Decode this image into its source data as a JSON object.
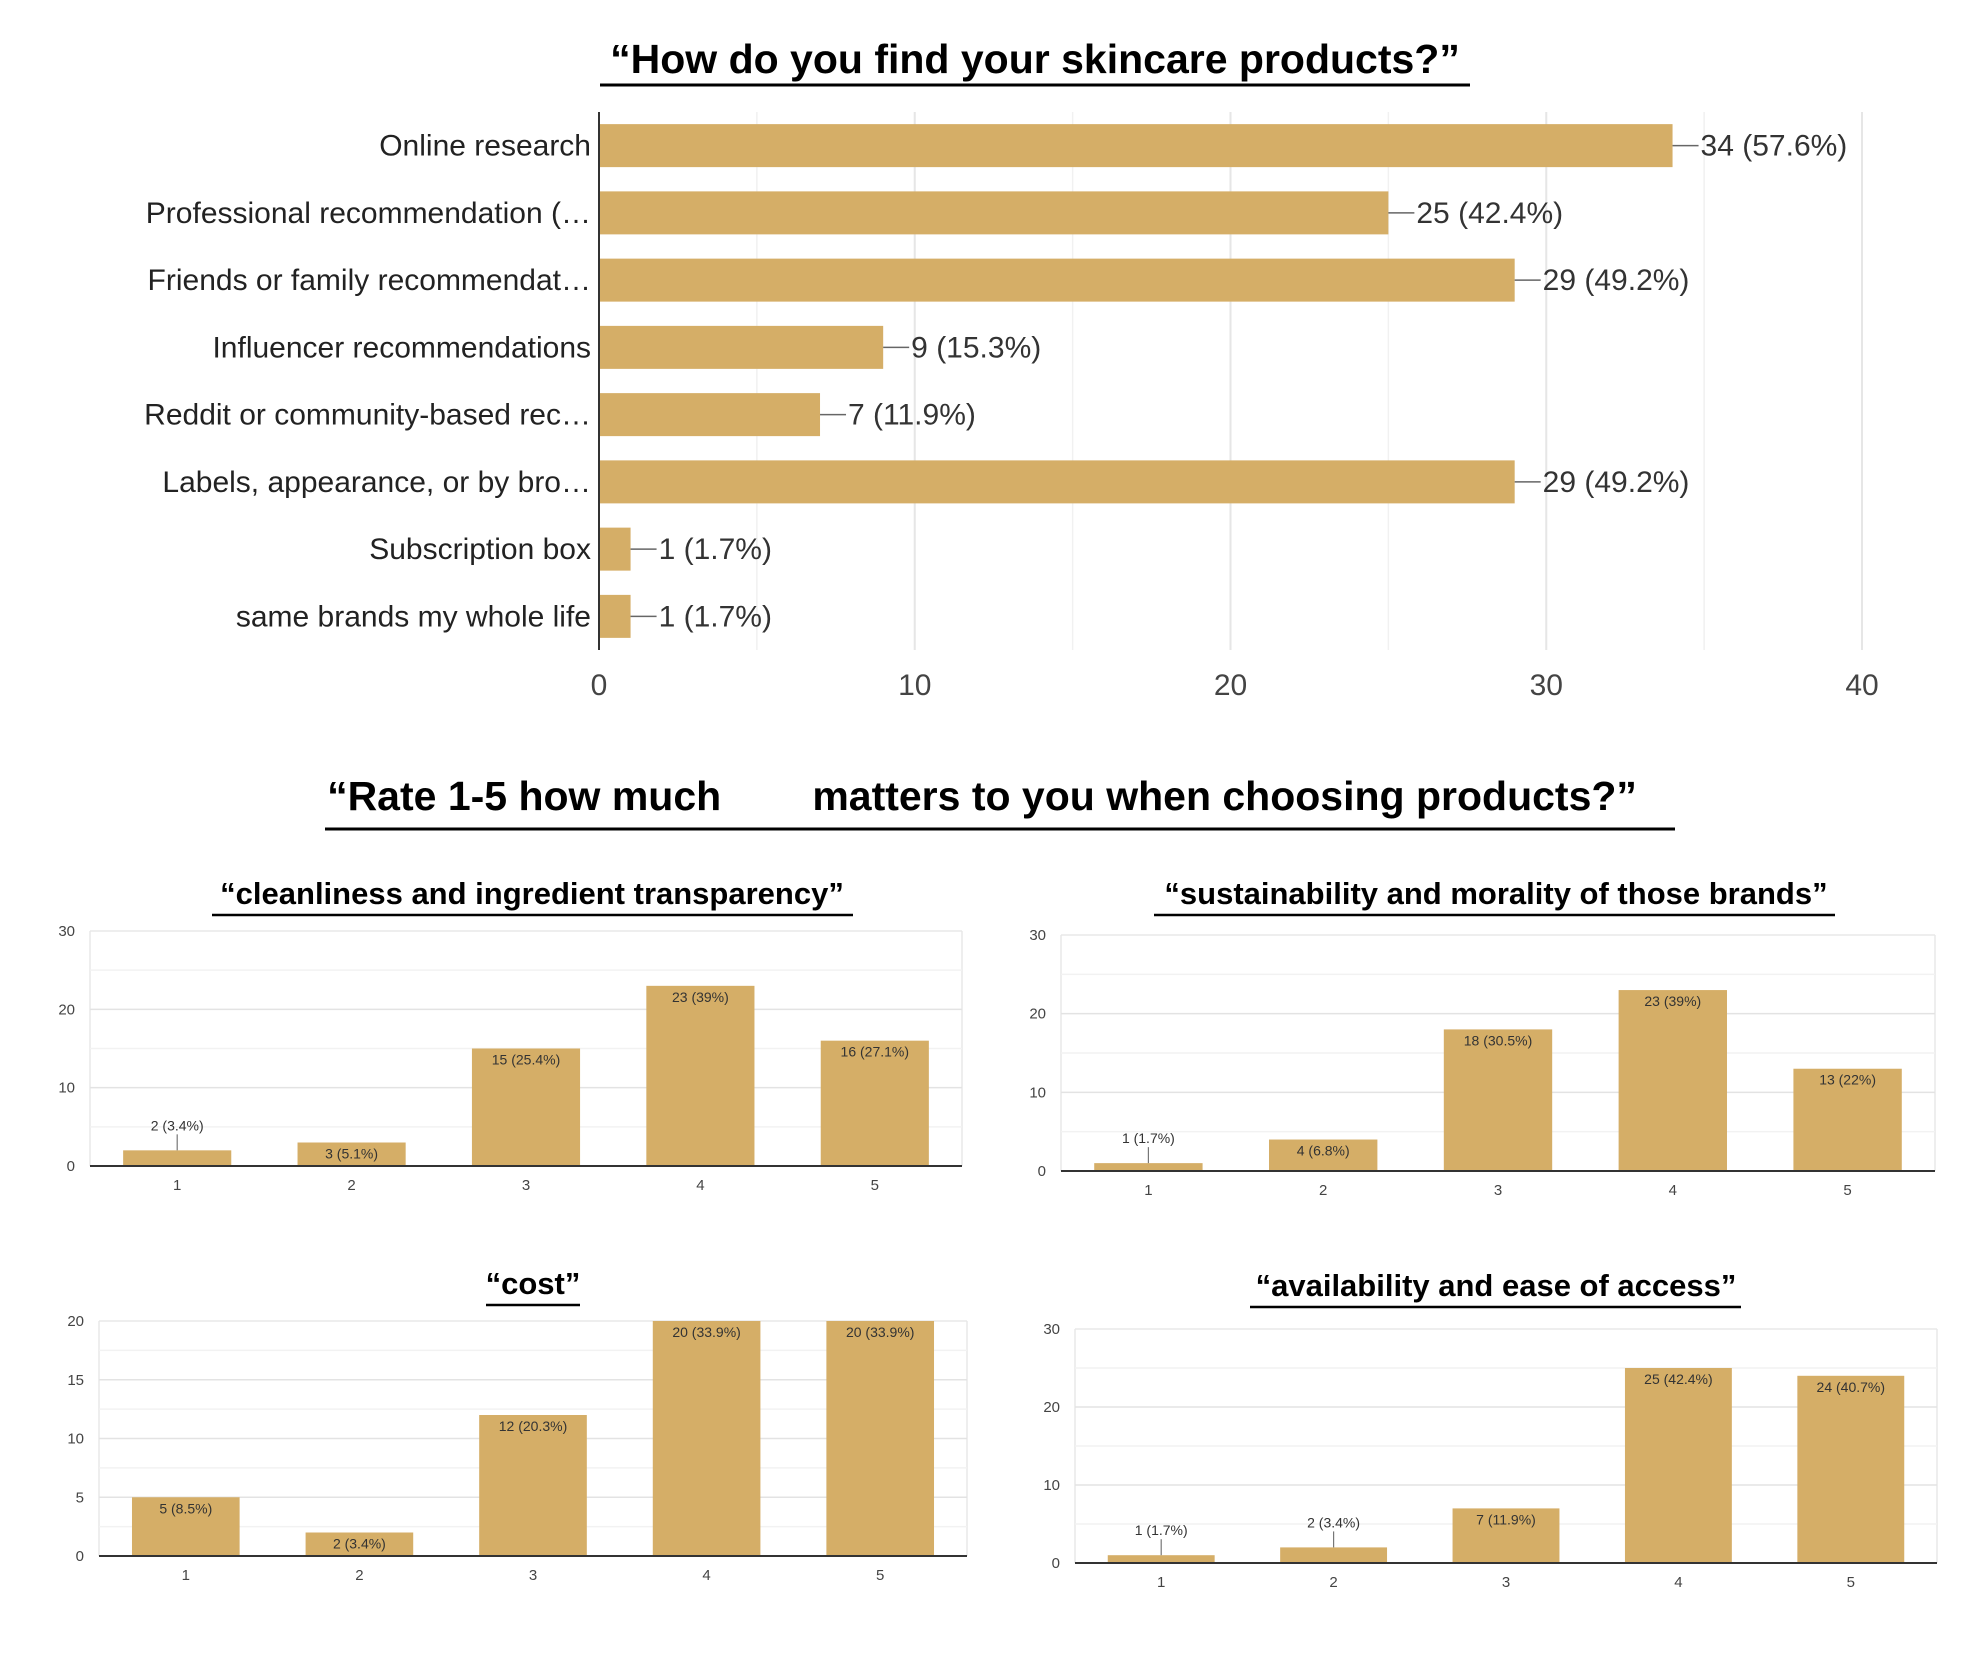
{
  "colors": {
    "bar": "#d5ae67",
    "grid": "#e6e6e6",
    "axis": "#333333",
    "text": "#333333",
    "title": "#000000"
  },
  "section2_title": "“Rate 1-5 how much        matters to you when choosing products?”",
  "chart_data": [
    {
      "type": "bar",
      "orientation": "horizontal",
      "title": "“How do you find your skincare products?”",
      "categories": [
        "Online research",
        "Professional recommendation (…",
        "Friends or family recommendat…",
        "Influencer recommendations",
        "Reddit or community-based rec…",
        "Labels, appearance, or by bro…",
        "Subscription box",
        "same brands my whole life"
      ],
      "values": [
        34,
        25,
        29,
        9,
        7,
        29,
        1,
        1
      ],
      "data_labels": [
        "34 (57.6%)",
        "25 (42.4%)",
        "29 (49.2%)",
        "9 (15.3%)",
        "7 (11.9%)",
        "29 (49.2%)",
        "1 (1.7%)",
        "1 (1.7%)"
      ],
      "xlim": [
        0,
        40
      ],
      "xticks": [
        0,
        10,
        20,
        30,
        40
      ],
      "grid": true
    },
    {
      "type": "bar",
      "title": "“cleanliness and ingredient transparency”",
      "categories": [
        "1",
        "2",
        "3",
        "4",
        "5"
      ],
      "values": [
        2,
        3,
        15,
        23,
        16
      ],
      "data_labels": [
        "2 (3.4%)",
        "3 (5.1%)",
        "15 (25.4%)",
        "23 (39%)",
        "16 (27.1%)"
      ],
      "ylim": [
        0,
        30
      ],
      "yticks": [
        0,
        10,
        20,
        30
      ],
      "grid": true
    },
    {
      "type": "bar",
      "title": "“sustainability and morality of those brands”",
      "categories": [
        "1",
        "2",
        "3",
        "4",
        "5"
      ],
      "values": [
        1,
        4,
        18,
        23,
        13
      ],
      "data_labels": [
        "1 (1.7%)",
        "4 (6.8%)",
        "18 (30.5%)",
        "23 (39%)",
        "13 (22%)"
      ],
      "ylim": [
        0,
        30
      ],
      "yticks": [
        0,
        10,
        20,
        30
      ],
      "grid": true
    },
    {
      "type": "bar",
      "title": "“cost”",
      "categories": [
        "1",
        "2",
        "3",
        "4",
        "5"
      ],
      "values": [
        5,
        2,
        12,
        20,
        20
      ],
      "data_labels": [
        "5 (8.5%)",
        "2 (3.4%)",
        "12 (20.3%)",
        "20 (33.9%)",
        "20 (33.9%)"
      ],
      "ylim": [
        0,
        20
      ],
      "yticks": [
        0,
        5,
        10,
        15,
        20
      ],
      "grid": true
    },
    {
      "type": "bar",
      "title": "“availability and ease of access”",
      "categories": [
        "1",
        "2",
        "3",
        "4",
        "5"
      ],
      "values": [
        1,
        2,
        7,
        25,
        24
      ],
      "data_labels": [
        "1 (1.7%)",
        "2 (3.4%)",
        "7 (11.9%)",
        "25 (42.4%)",
        "24 (40.7%)"
      ],
      "ylim": [
        0,
        30
      ],
      "yticks": [
        0,
        10,
        20,
        30
      ],
      "grid": true
    }
  ]
}
